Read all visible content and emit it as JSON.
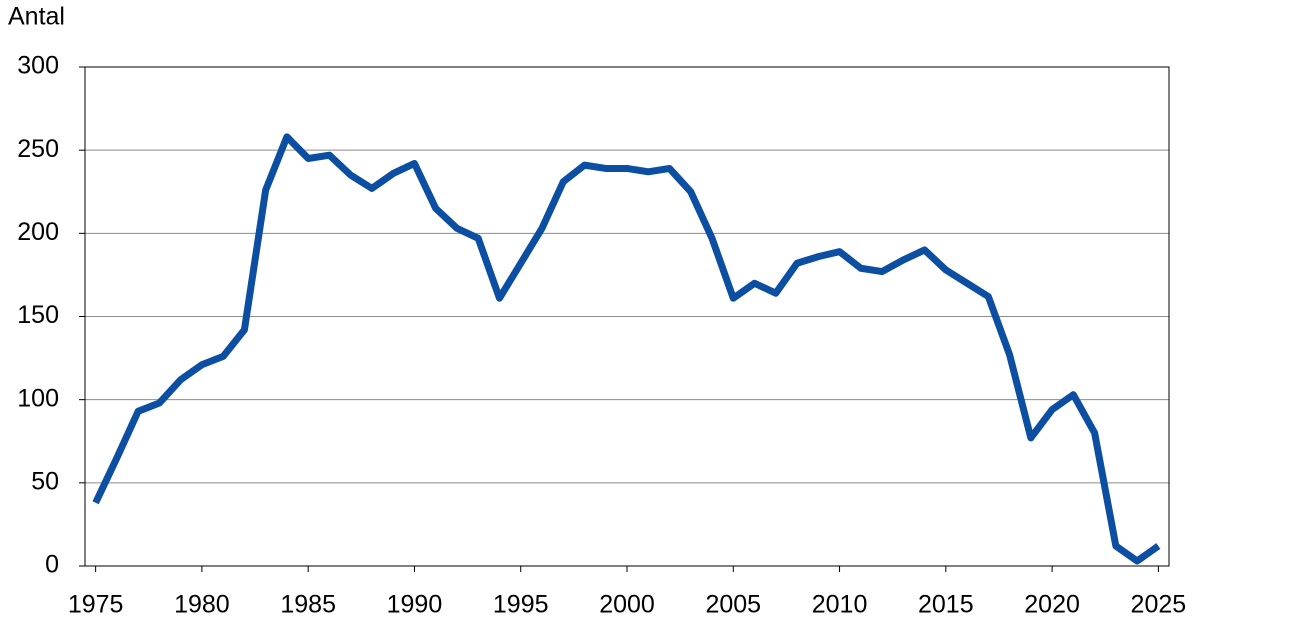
{
  "chart_data": {
    "type": "line",
    "y_label": "Antal",
    "x": [
      1975,
      1976,
      1977,
      1978,
      1979,
      1980,
      1981,
      1982,
      1983,
      1984,
      1985,
      1986,
      1987,
      1988,
      1989,
      1990,
      1991,
      1992,
      1993,
      1994,
      1995,
      1996,
      1997,
      1998,
      1999,
      2000,
      2001,
      2002,
      2003,
      2004,
      2005,
      2006,
      2007,
      2008,
      2009,
      2010,
      2011,
      2012,
      2013,
      2014,
      2015,
      2016,
      2017,
      2018,
      2019,
      2020,
      2021,
      2022,
      2023,
      2024,
      2025
    ],
    "series": [
      {
        "color": "#0b4ea2",
        "values": [
          38,
          65,
          93,
          98,
          112,
          121,
          126,
          142,
          226,
          258,
          245,
          247,
          235,
          227,
          236,
          242,
          215,
          203,
          197,
          161,
          182,
          203,
          231,
          241,
          239,
          239,
          237,
          239,
          225,
          197,
          161,
          170,
          164,
          182,
          186,
          189,
          179,
          177,
          184,
          190,
          178,
          170,
          162,
          127,
          77,
          94,
          103,
          80,
          12,
          3,
          12
        ]
      }
    ],
    "xlim": [
      1974.5,
      2025.5
    ],
    "xticks": [
      1975,
      1980,
      1985,
      1990,
      1995,
      2000,
      2005,
      2010,
      2015,
      2020,
      2025
    ],
    "ylim": [
      0,
      300
    ],
    "yticks": [
      0,
      50,
      100,
      150,
      200,
      250,
      300
    ],
    "grid": true
  }
}
